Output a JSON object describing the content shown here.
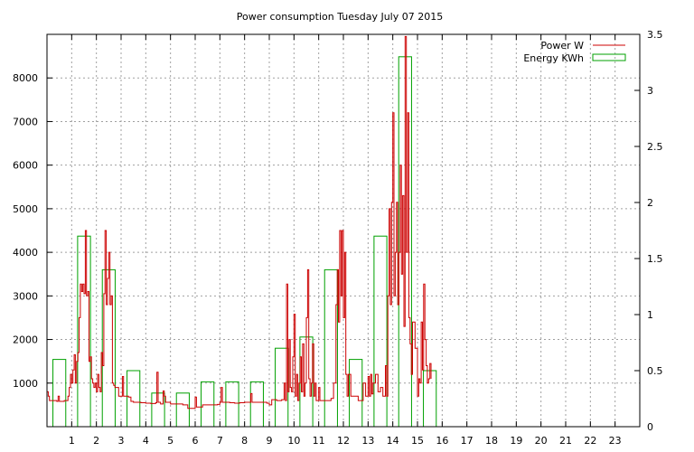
{
  "chart_data": {
    "type": "bar+line",
    "title": "Power consumption Tuesday July 07 2015",
    "grid": true,
    "legend_position": "top-right",
    "x": {
      "label": "",
      "range": [
        0,
        24
      ],
      "ticks": [
        1,
        2,
        3,
        4,
        5,
        6,
        7,
        8,
        9,
        10,
        11,
        12,
        13,
        14,
        15,
        16,
        17,
        18,
        19,
        20,
        21,
        22,
        23
      ]
    },
    "y_left": {
      "label": "",
      "range": [
        0,
        9000
      ],
      "ticks": [
        1000,
        2000,
        3000,
        4000,
        5000,
        6000,
        7000,
        8000
      ]
    },
    "y_right": {
      "label": "",
      "range": [
        0,
        3.5
      ],
      "ticks": [
        "0",
        "0.5",
        "1",
        "1.5",
        "2",
        "2.5",
        "3",
        "3.5"
      ]
    },
    "series": [
      {
        "name": "Energy KWh",
        "kind": "bar",
        "axis": "right",
        "color": "#00a000",
        "hours": [
          0,
          1,
          2,
          3,
          4,
          5,
          6,
          7,
          8,
          9,
          10,
          11,
          12,
          13,
          14,
          15
        ],
        "values": [
          0.6,
          1.7,
          1.4,
          0.5,
          0.3,
          0.3,
          0.4,
          0.4,
          0.4,
          0.7,
          0.8,
          1.4,
          0.6,
          1.7,
          3.3,
          0.5
        ]
      },
      {
        "name": "Power W",
        "kind": "line",
        "axis": "left",
        "color": "#cc0000",
        "points": [
          [
            0.0,
            800
          ],
          [
            0.05,
            700
          ],
          [
            0.1,
            600
          ],
          [
            0.4,
            580
          ],
          [
            0.45,
            700
          ],
          [
            0.5,
            580
          ],
          [
            0.7,
            600
          ],
          [
            0.85,
            700
          ],
          [
            0.9,
            900
          ],
          [
            0.95,
            1200
          ],
          [
            1.0,
            1000
          ],
          [
            1.05,
            1300
          ],
          [
            1.1,
            1650
          ],
          [
            1.15,
            1000
          ],
          [
            1.2,
            1500
          ],
          [
            1.25,
            1700
          ],
          [
            1.3,
            2500
          ],
          [
            1.35,
            3270
          ],
          [
            1.4,
            3100
          ],
          [
            1.45,
            3270
          ],
          [
            1.5,
            3050
          ],
          [
            1.55,
            4500
          ],
          [
            1.6,
            3000
          ],
          [
            1.65,
            3100
          ],
          [
            1.7,
            1500
          ],
          [
            1.75,
            1600
          ],
          [
            1.8,
            1100
          ],
          [
            1.85,
            1000
          ],
          [
            1.9,
            900
          ],
          [
            1.95,
            1000
          ],
          [
            2.0,
            800
          ],
          [
            2.05,
            1200
          ],
          [
            2.1,
            900
          ],
          [
            2.15,
            800
          ],
          [
            2.2,
            1700
          ],
          [
            2.25,
            1400
          ],
          [
            2.3,
            3050
          ],
          [
            2.35,
            4500
          ],
          [
            2.4,
            2800
          ],
          [
            2.45,
            3400
          ],
          [
            2.5,
            4000
          ],
          [
            2.55,
            2800
          ],
          [
            2.6,
            3000
          ],
          [
            2.65,
            1000
          ],
          [
            2.7,
            950
          ],
          [
            2.75,
            900
          ],
          [
            2.8,
            900
          ],
          [
            2.9,
            700
          ],
          [
            3.0,
            700
          ],
          [
            3.05,
            1150
          ],
          [
            3.1,
            700
          ],
          [
            3.3,
            680
          ],
          [
            3.4,
            580
          ],
          [
            3.5,
            560
          ],
          [
            3.8,
            550
          ],
          [
            4.0,
            540
          ],
          [
            4.2,
            530
          ],
          [
            4.4,
            550
          ],
          [
            4.45,
            1250
          ],
          [
            4.5,
            560
          ],
          [
            4.6,
            520
          ],
          [
            4.7,
            820
          ],
          [
            4.75,
            700
          ],
          [
            4.8,
            560
          ],
          [
            5.0,
            520
          ],
          [
            5.5,
            500
          ],
          [
            5.7,
            420
          ],
          [
            5.9,
            420
          ],
          [
            6.0,
            680
          ],
          [
            6.05,
            450
          ],
          [
            6.3,
            500
          ],
          [
            6.6,
            500
          ],
          [
            6.9,
            510
          ],
          [
            7.0,
            560
          ],
          [
            7.05,
            900
          ],
          [
            7.1,
            560
          ],
          [
            7.4,
            550
          ],
          [
            7.6,
            540
          ],
          [
            7.8,
            550
          ],
          [
            8.0,
            560
          ],
          [
            8.2,
            560
          ],
          [
            8.25,
            760
          ],
          [
            8.3,
            560
          ],
          [
            8.6,
            560
          ],
          [
            8.9,
            540
          ],
          [
            9.0,
            500
          ],
          [
            9.1,
            620
          ],
          [
            9.3,
            600
          ],
          [
            9.5,
            620
          ],
          [
            9.6,
            1000
          ],
          [
            9.65,
            600
          ],
          [
            9.7,
            3270
          ],
          [
            9.75,
            800
          ],
          [
            9.8,
            2000
          ],
          [
            9.85,
            900
          ],
          [
            9.9,
            800
          ],
          [
            9.95,
            1600
          ],
          [
            10.0,
            2580
          ],
          [
            10.05,
            700
          ],
          [
            10.1,
            1200
          ],
          [
            10.15,
            600
          ],
          [
            10.2,
            1000
          ],
          [
            10.25,
            1600
          ],
          [
            10.3,
            800
          ],
          [
            10.35,
            1900
          ],
          [
            10.4,
            700
          ],
          [
            10.45,
            1000
          ],
          [
            10.5,
            2500
          ],
          [
            10.55,
            3600
          ],
          [
            10.6,
            1100
          ],
          [
            10.65,
            700
          ],
          [
            10.7,
            1000
          ],
          [
            10.75,
            1900
          ],
          [
            10.8,
            700
          ],
          [
            10.85,
            1000
          ],
          [
            10.9,
            600
          ],
          [
            11.0,
            900
          ],
          [
            11.05,
            600
          ],
          [
            11.3,
            600
          ],
          [
            11.5,
            650
          ],
          [
            11.6,
            1000
          ],
          [
            11.7,
            2800
          ],
          [
            11.75,
            3600
          ],
          [
            11.8,
            2400
          ],
          [
            11.85,
            4500
          ],
          [
            11.9,
            3000
          ],
          [
            11.95,
            4500
          ],
          [
            12.0,
            2500
          ],
          [
            12.05,
            4000
          ],
          [
            12.1,
            1200
          ],
          [
            12.15,
            700
          ],
          [
            12.2,
            1200
          ],
          [
            12.3,
            700
          ],
          [
            12.5,
            700
          ],
          [
            12.6,
            600
          ],
          [
            12.8,
            1000
          ],
          [
            12.9,
            700
          ],
          [
            13.0,
            1150
          ],
          [
            13.05,
            700
          ],
          [
            13.1,
            1200
          ],
          [
            13.15,
            750
          ],
          [
            13.2,
            1000
          ],
          [
            13.3,
            1200
          ],
          [
            13.4,
            800
          ],
          [
            13.5,
            900
          ],
          [
            13.6,
            700
          ],
          [
            13.7,
            1400
          ],
          [
            13.75,
            700
          ],
          [
            13.8,
            3000
          ],
          [
            13.85,
            5000
          ],
          [
            13.9,
            2800
          ],
          [
            13.95,
            5150
          ],
          [
            14.0,
            7200
          ],
          [
            14.05,
            3000
          ],
          [
            14.1,
            4000
          ],
          [
            14.15,
            5150
          ],
          [
            14.2,
            2800
          ],
          [
            14.25,
            4000
          ],
          [
            14.3,
            6000
          ],
          [
            14.35,
            3500
          ],
          [
            14.4,
            5300
          ],
          [
            14.45,
            2300
          ],
          [
            14.5,
            8950
          ],
          [
            14.55,
            4000
          ],
          [
            14.6,
            7200
          ],
          [
            14.65,
            2500
          ],
          [
            14.7,
            1900
          ],
          [
            14.75,
            1200
          ],
          [
            14.8,
            2400
          ],
          [
            14.9,
            1800
          ],
          [
            15.0,
            700
          ],
          [
            15.05,
            1100
          ],
          [
            15.1,
            1000
          ],
          [
            15.15,
            2400
          ],
          [
            15.2,
            1300
          ],
          [
            15.25,
            3270
          ],
          [
            15.3,
            2000
          ],
          [
            15.35,
            1400
          ],
          [
            15.4,
            1000
          ],
          [
            15.45,
            1100
          ],
          [
            15.5,
            1450
          ],
          [
            15.55,
            1100
          ]
        ]
      }
    ]
  }
}
